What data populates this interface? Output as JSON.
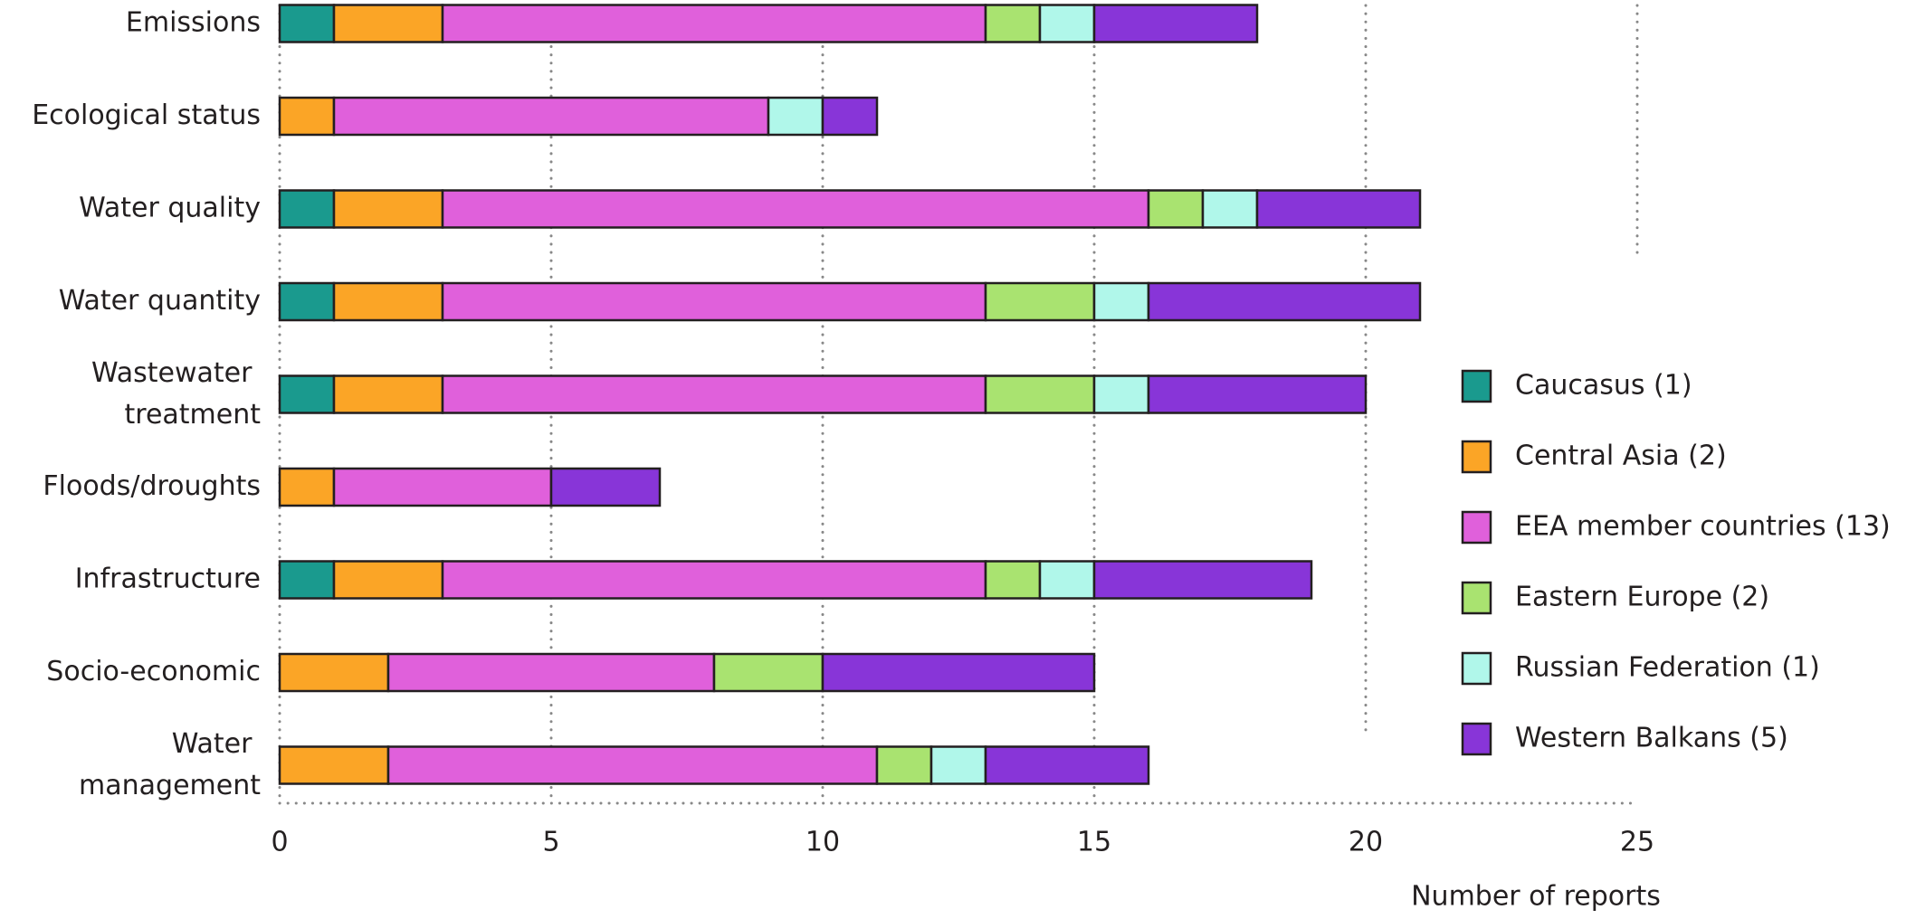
{
  "chart_data": {
    "type": "stacked-bar-horizontal",
    "categories": [
      "Emissions",
      "Ecological status",
      "Water quality",
      "Water quantity",
      "Wastewater treatment",
      "Floods/droughts",
      "Infrastructure",
      "Socio-economic",
      "Water management"
    ],
    "series": [
      {
        "name": "Caucasus (1)",
        "color": "#1a9a8e",
        "values": [
          1,
          0,
          1,
          1,
          1,
          0,
          1,
          0,
          0
        ]
      },
      {
        "name": "Central Asia (2)",
        "color": "#fba526",
        "values": [
          2,
          1,
          2,
          2,
          2,
          1,
          2,
          2,
          2
        ]
      },
      {
        "name": "EEA member countries (13)",
        "color": "#e060db",
        "values": [
          10,
          8,
          13,
          10,
          10,
          4,
          10,
          6,
          9
        ]
      },
      {
        "name": "Eastern Europe (2)",
        "color": "#a9e370",
        "values": [
          1,
          0,
          1,
          2,
          2,
          0,
          1,
          2,
          1
        ]
      },
      {
        "name": "Russian Federation (1)",
        "color": "#b0f7ea",
        "values": [
          1,
          1,
          1,
          1,
          1,
          0,
          1,
          0,
          1
        ]
      },
      {
        "name": "Western Balkans (5)",
        "color": "#8835d8",
        "values": [
          3,
          1,
          3,
          5,
          4,
          2,
          4,
          5,
          3
        ]
      }
    ],
    "xlabel": "Number of reports",
    "xlim": [
      0,
      25
    ],
    "xticks": [
      0,
      5,
      10,
      15,
      20,
      25
    ],
    "grid": true,
    "legend": "right"
  }
}
